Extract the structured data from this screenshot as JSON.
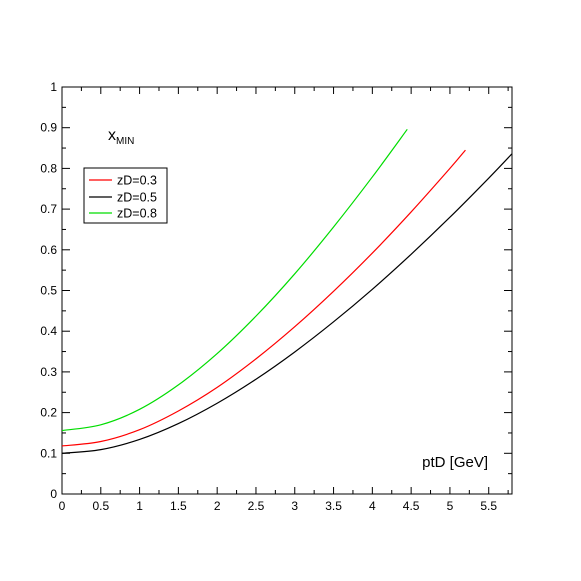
{
  "chart_data": {
    "type": "line",
    "title": "",
    "xlabel": "ptD [GeV]",
    "ylabel": "",
    "annotation": {
      "main": "x",
      "sub": "MIN"
    },
    "xlim": [
      0,
      5.8
    ],
    "ylim": [
      0,
      1
    ],
    "x_ticks": [
      0,
      0.5,
      1,
      1.5,
      2,
      2.5,
      3,
      3.5,
      4,
      4.5,
      5,
      5.5
    ],
    "x_tick_labels": [
      "0",
      "0.5",
      "1",
      "1.5",
      "2",
      "2.5",
      "3",
      "3.5",
      "4",
      "4.5",
      "5",
      "5.5"
    ],
    "y_ticks": [
      0,
      0.1,
      0.2,
      0.3,
      0.4,
      0.5,
      0.6,
      0.7,
      0.8,
      0.9,
      1
    ],
    "y_tick_labels": [
      "0",
      "0.1",
      "0.2",
      "0.3",
      "0.4",
      "0.5",
      "0.6",
      "0.7",
      "0.8",
      "0.9",
      "1"
    ],
    "grid": false,
    "legend_position": "top-left",
    "series": [
      {
        "name": "zD=0.3",
        "color": "#ff0000",
        "x": [
          0,
          0.5,
          1,
          1.5,
          2,
          2.5,
          3,
          3.5,
          4,
          4.5,
          5,
          5.2
        ],
        "y": [
          0.118,
          0.129,
          0.158,
          0.204,
          0.262,
          0.332,
          0.411,
          0.498,
          0.592,
          0.693,
          0.8,
          0.845
        ]
      },
      {
        "name": "zD=0.5",
        "color": "#000000",
        "x": [
          0,
          0.5,
          1,
          1.5,
          2,
          2.5,
          3,
          3.5,
          4,
          4.5,
          5,
          5.5,
          5.8
        ],
        "y": [
          0.1,
          0.109,
          0.134,
          0.173,
          0.223,
          0.282,
          0.349,
          0.423,
          0.503,
          0.589,
          0.68,
          0.776,
          0.836
        ]
      },
      {
        "name": "zD=0.8",
        "color": "#00dd00",
        "x": [
          0,
          0.5,
          1,
          1.5,
          2,
          2.5,
          3,
          3.5,
          4,
          4.45
        ],
        "y": [
          0.156,
          0.17,
          0.208,
          0.268,
          0.345,
          0.437,
          0.541,
          0.656,
          0.779,
          0.896
        ]
      }
    ]
  }
}
